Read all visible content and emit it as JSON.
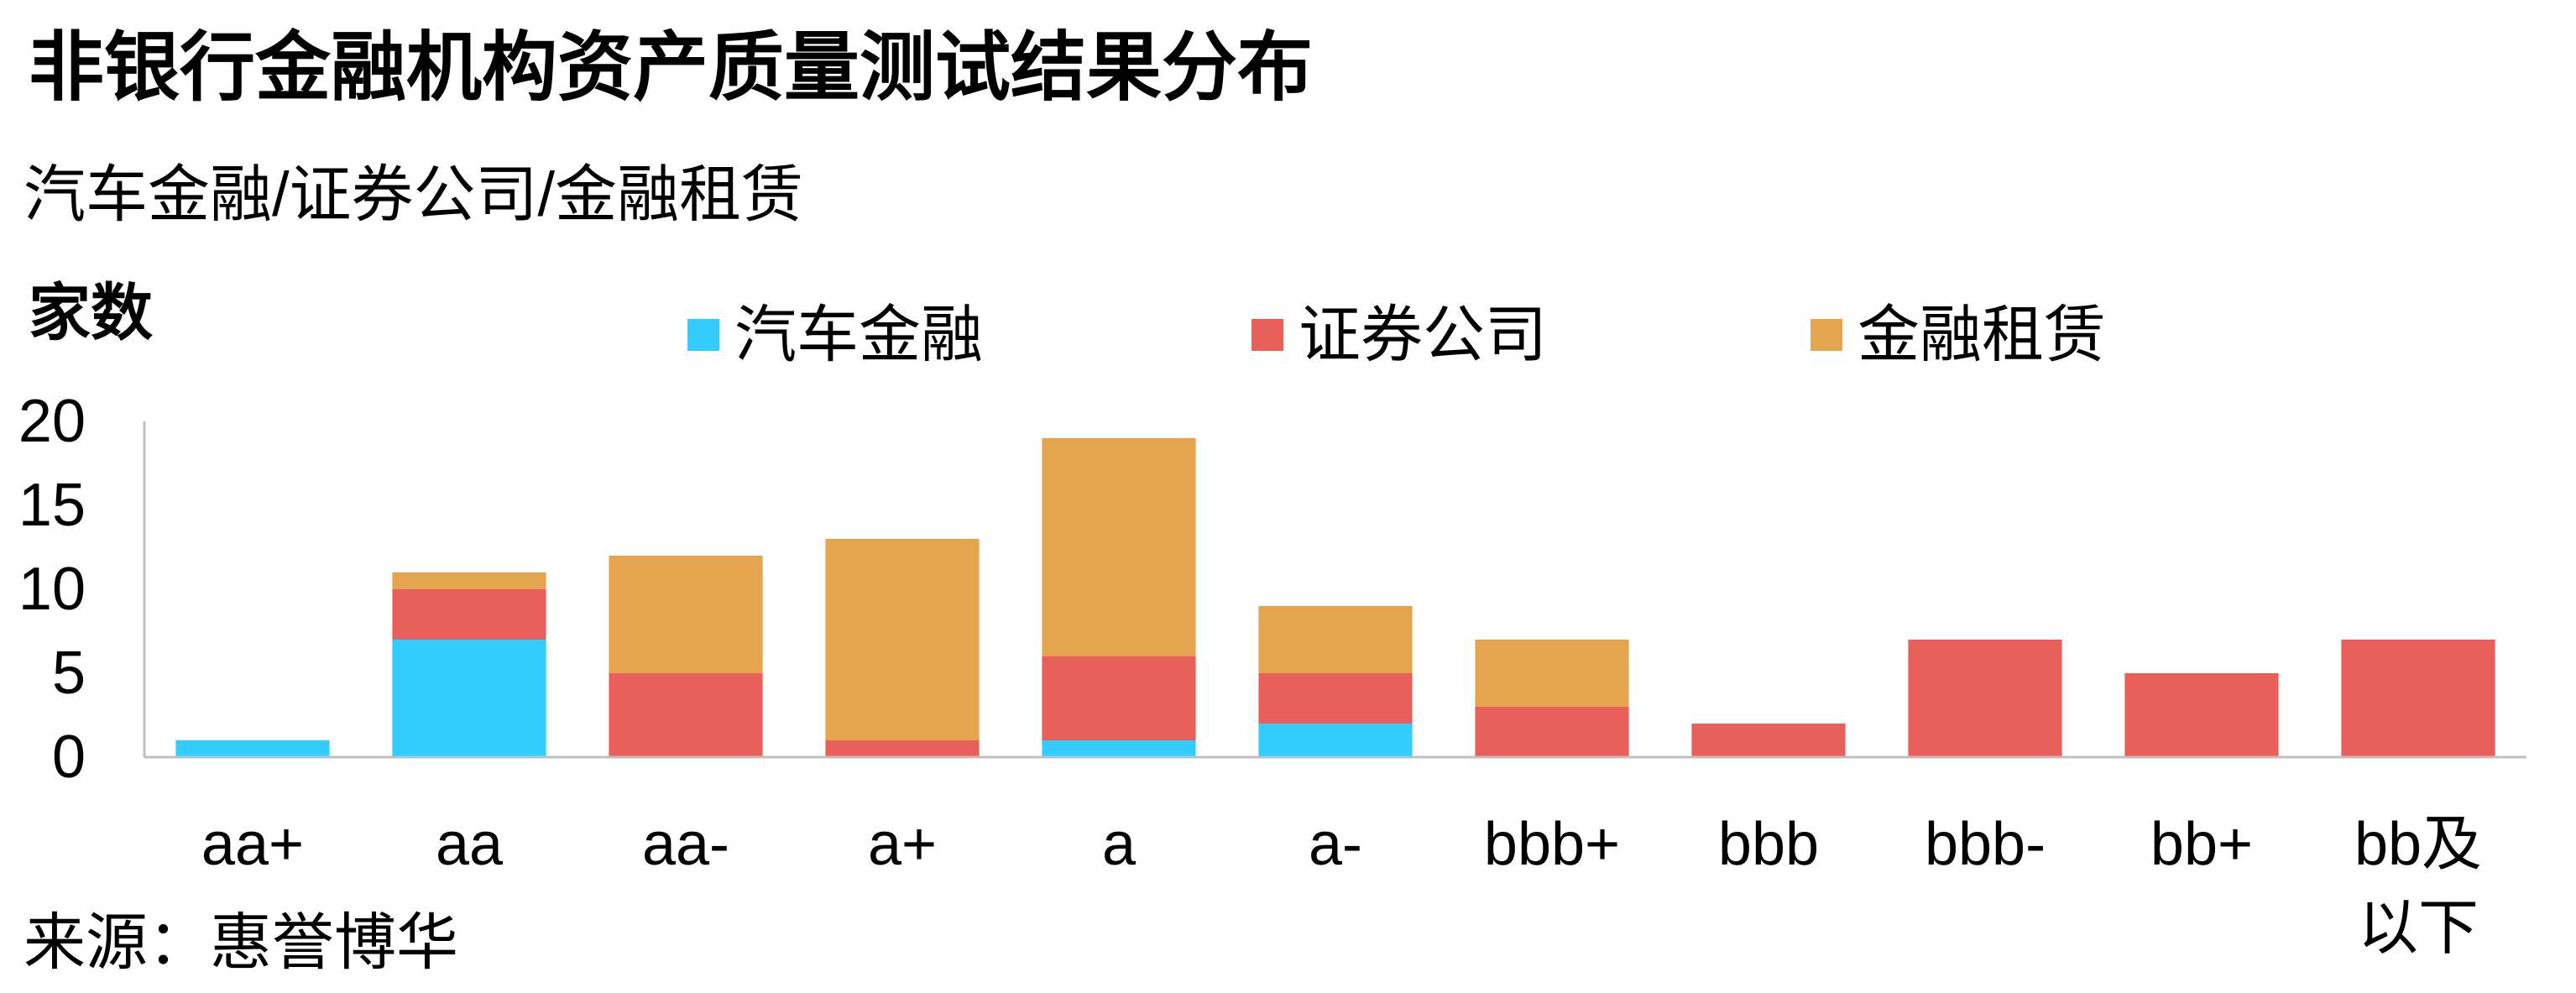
{
  "chart_data": {
    "type": "bar",
    "stacked": true,
    "title": "非银行金融机构资产质量测试结果分布",
    "subtitle": "汽车金融/证券公司/金融租赁",
    "ylabel": "家数",
    "ylim": [
      0,
      20
    ],
    "yticks": [
      0,
      5,
      10,
      15,
      20
    ],
    "grid": false,
    "legend_position": "top",
    "categories": [
      "aa+",
      "aa",
      "aa-",
      "a+",
      "a",
      "a-",
      "bbb+",
      "bbb",
      "bbb-",
      "bb+",
      "bb及以下"
    ],
    "series": [
      {
        "name": "汽车金融",
        "color": "#33CCFF",
        "values": [
          1,
          7,
          0,
          0,
          1,
          2,
          0,
          0,
          0,
          0,
          0
        ]
      },
      {
        "name": "证券公司",
        "color": "#E9605A",
        "values": [
          0,
          3,
          5,
          1,
          5,
          3,
          3,
          2,
          7,
          5,
          7
        ]
      },
      {
        "name": "金融租赁",
        "color": "#E5A54F",
        "values": [
          0,
          1,
          7,
          12,
          13,
          4,
          4,
          0,
          0,
          0,
          0
        ]
      }
    ],
    "source": "来源：惠誉博华"
  }
}
